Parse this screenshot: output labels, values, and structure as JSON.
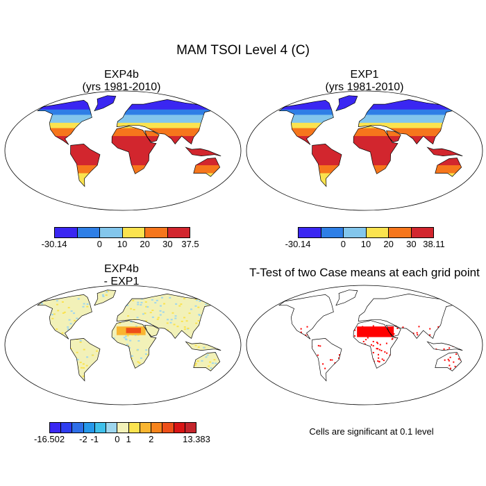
{
  "figure_title": "MAM TSOI Level 4 (C)",
  "panels": {
    "p1": {
      "title_line1": "EXP4b",
      "title_line2": "(yrs 1981-2010)"
    },
    "p2": {
      "title_line1": "EXP1",
      "title_line2": "(yrs 1981-2010)"
    },
    "p3": {
      "title_line1": "EXP4b",
      "title_line2": "- EXP1"
    },
    "p4": {
      "title_line1": "T-Test of two Case means at each grid point"
    }
  },
  "colorbars": {
    "cb1": {
      "labels": [
        "-30.14",
        "0",
        "10",
        "20",
        "30",
        "37.5"
      ],
      "colors": [
        "#3a27f2",
        "#2f7fe6",
        "#83c6ec",
        "#fbe34f",
        "#f6761c",
        "#d2262e"
      ]
    },
    "cb2": {
      "labels": [
        "-30.14",
        "0",
        "10",
        "20",
        "30",
        "38.11"
      ],
      "colors": [
        "#3a27f2",
        "#2f7fe6",
        "#83c6ec",
        "#fbe34f",
        "#f6761c",
        "#d2262e"
      ]
    },
    "cb3": {
      "labels": [
        "-16.502",
        "-2",
        "-1",
        "0",
        "1",
        "2",
        "13.383"
      ],
      "colors": [
        "#3a27f2",
        "#2f3df0",
        "#2e6fe8",
        "#2698ea",
        "#3fc0ea",
        "#9ed6ee",
        "#f2f1b8",
        "#fbe34f",
        "#f9b531",
        "#f6841c",
        "#ee4f19",
        "#d91515",
        "#c4252c"
      ]
    }
  },
  "significance_note": "Cells are significant at 0.1 level",
  "significance_color": "#ff0000"
}
